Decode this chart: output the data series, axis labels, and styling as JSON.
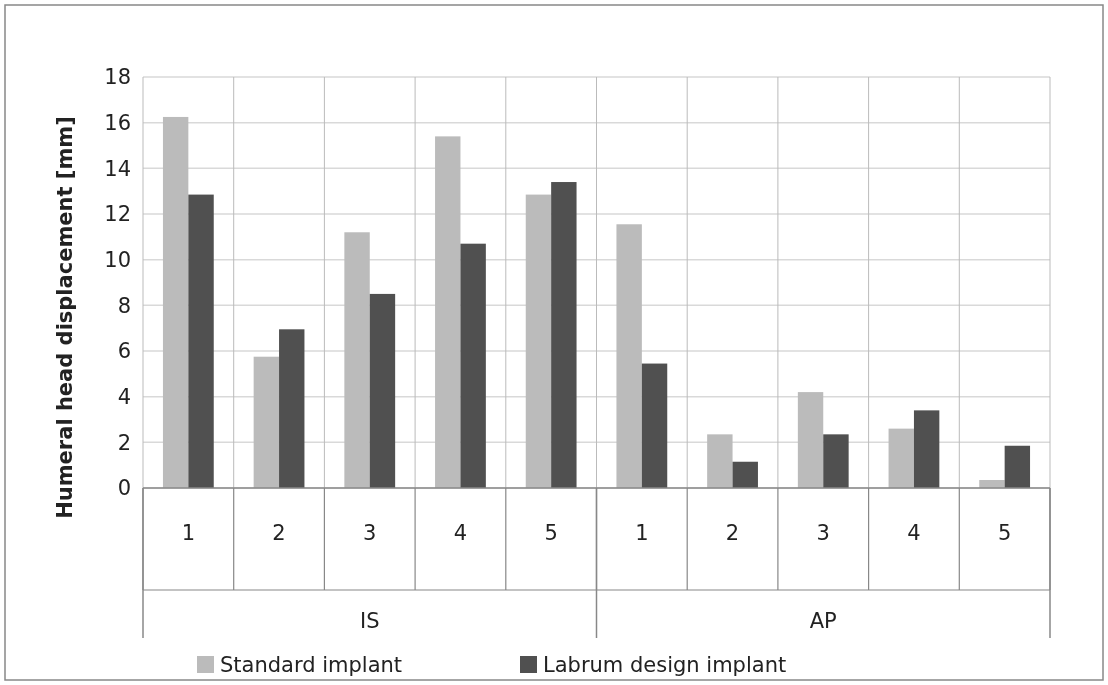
{
  "chart_data": {
    "type": "bar",
    "ylabel": "Humeral head displacement [mm]",
    "categories": [
      "1",
      "2",
      "3",
      "4",
      "5",
      "1",
      "2",
      "3",
      "4",
      "5"
    ],
    "annotations": [
      "IS",
      "AP"
    ],
    "series": [
      {
        "name": "Standard implant",
        "color": "#bbbbbb",
        "values": [
          16.25,
          5.75,
          11.2,
          15.4,
          12.85,
          11.55,
          2.35,
          4.2,
          2.6,
          0.35
        ]
      },
      {
        "name": "Labrum design implant",
        "color": "#505050",
        "values": [
          12.85,
          6.95,
          8.5,
          10.7,
          13.4,
          5.45,
          1.15,
          2.35,
          3.4,
          1.85
        ]
      }
    ],
    "ylim": [
      0,
      18
    ],
    "yticks": [
      0,
      2,
      4,
      6,
      8,
      10,
      12,
      14,
      16,
      18
    ],
    "grid": true,
    "legend": "bottom"
  }
}
